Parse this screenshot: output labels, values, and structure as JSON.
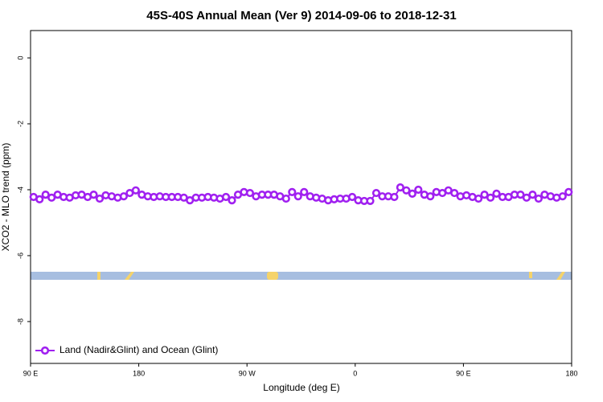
{
  "chart_data": {
    "type": "line",
    "title": "45S-40S Annual Mean (Ver 9)   2014-09-06 to 2018-12-31",
    "xlabel": "Longitude (deg E)",
    "ylabel": "XCO2 - MLO trend (ppm)",
    "xlim": [
      90,
      540
    ],
    "ylim": [
      -9.27,
      0.83
    ],
    "xticks": [
      {
        "value": 90,
        "label": "90 E"
      },
      180,
      {
        "value": 270,
        "label": "90 W"
      },
      {
        "value": 360,
        "label": "0"
      },
      {
        "value": 450,
        "label": "90 E"
      },
      {
        "value": 540,
        "label": "180"
      }
    ],
    "yticks": [
      0,
      -2,
      -4,
      -6,
      -8
    ],
    "legend": "lower left",
    "x": [
      92.5,
      97.5,
      102.5,
      107.5,
      112.5,
      117.5,
      122.5,
      127.5,
      132.5,
      137.5,
      142.5,
      147.5,
      152.5,
      157.5,
      162.5,
      167.5,
      172.5,
      177.5,
      182.5,
      187.5,
      192.5,
      197.5,
      202.5,
      207.5,
      212.5,
      217.5,
      222.5,
      227.5,
      232.5,
      237.5,
      242.5,
      247.5,
      252.5,
      257.5,
      262.5,
      267.5,
      272.5,
      277.5,
      282.5,
      287.5,
      292.5,
      297.5,
      302.5,
      307.5,
      312.5,
      317.5,
      322.5,
      327.5,
      332.5,
      337.5,
      342.5,
      347.5,
      352.5,
      357.5,
      362.5,
      367.5,
      372.5,
      377.5,
      382.5,
      387.5,
      392.5,
      397.5,
      402.5,
      407.5,
      412.5,
      417.5,
      422.5,
      427.5,
      432.5,
      437.5,
      442.5,
      447.5,
      452.5,
      457.5,
      462.5,
      467.5,
      472.5,
      477.5,
      482.5,
      487.5,
      492.5,
      497.5,
      502.5,
      507.5,
      512.5,
      517.5,
      522.5,
      527.5,
      532.5,
      537.5
    ],
    "series": [
      {
        "name": "Land (Nadir&Glint) and Ocean (Glint)",
        "color": "#a020f0",
        "values": [
          -4.22,
          -4.29,
          -4.15,
          -4.24,
          -4.15,
          -4.22,
          -4.24,
          -4.17,
          -4.15,
          -4.22,
          -4.15,
          -4.27,
          -4.17,
          -4.2,
          -4.24,
          -4.2,
          -4.1,
          -4.02,
          -4.15,
          -4.2,
          -4.22,
          -4.2,
          -4.22,
          -4.22,
          -4.22,
          -4.24,
          -4.32,
          -4.24,
          -4.24,
          -4.22,
          -4.24,
          -4.27,
          -4.22,
          -4.32,
          -4.15,
          -4.07,
          -4.1,
          -4.2,
          -4.15,
          -4.15,
          -4.15,
          -4.2,
          -4.27,
          -4.07,
          -4.2,
          -4.07,
          -4.2,
          -4.24,
          -4.27,
          -4.32,
          -4.29,
          -4.27,
          -4.27,
          -4.22,
          -4.32,
          -4.34,
          -4.34,
          -4.1,
          -4.2,
          -4.2,
          -4.22,
          -3.93,
          -4.02,
          -4.12,
          -4.0,
          -4.15,
          -4.2,
          -4.07,
          -4.1,
          -4.02,
          -4.1,
          -4.2,
          -4.17,
          -4.22,
          -4.27,
          -4.15,
          -4.24,
          -4.12,
          -4.22,
          -4.22,
          -4.15,
          -4.15,
          -4.24,
          -4.15,
          -4.27,
          -4.15,
          -4.2,
          -4.24,
          -4.2,
          -4.07
        ]
      }
    ]
  }
}
